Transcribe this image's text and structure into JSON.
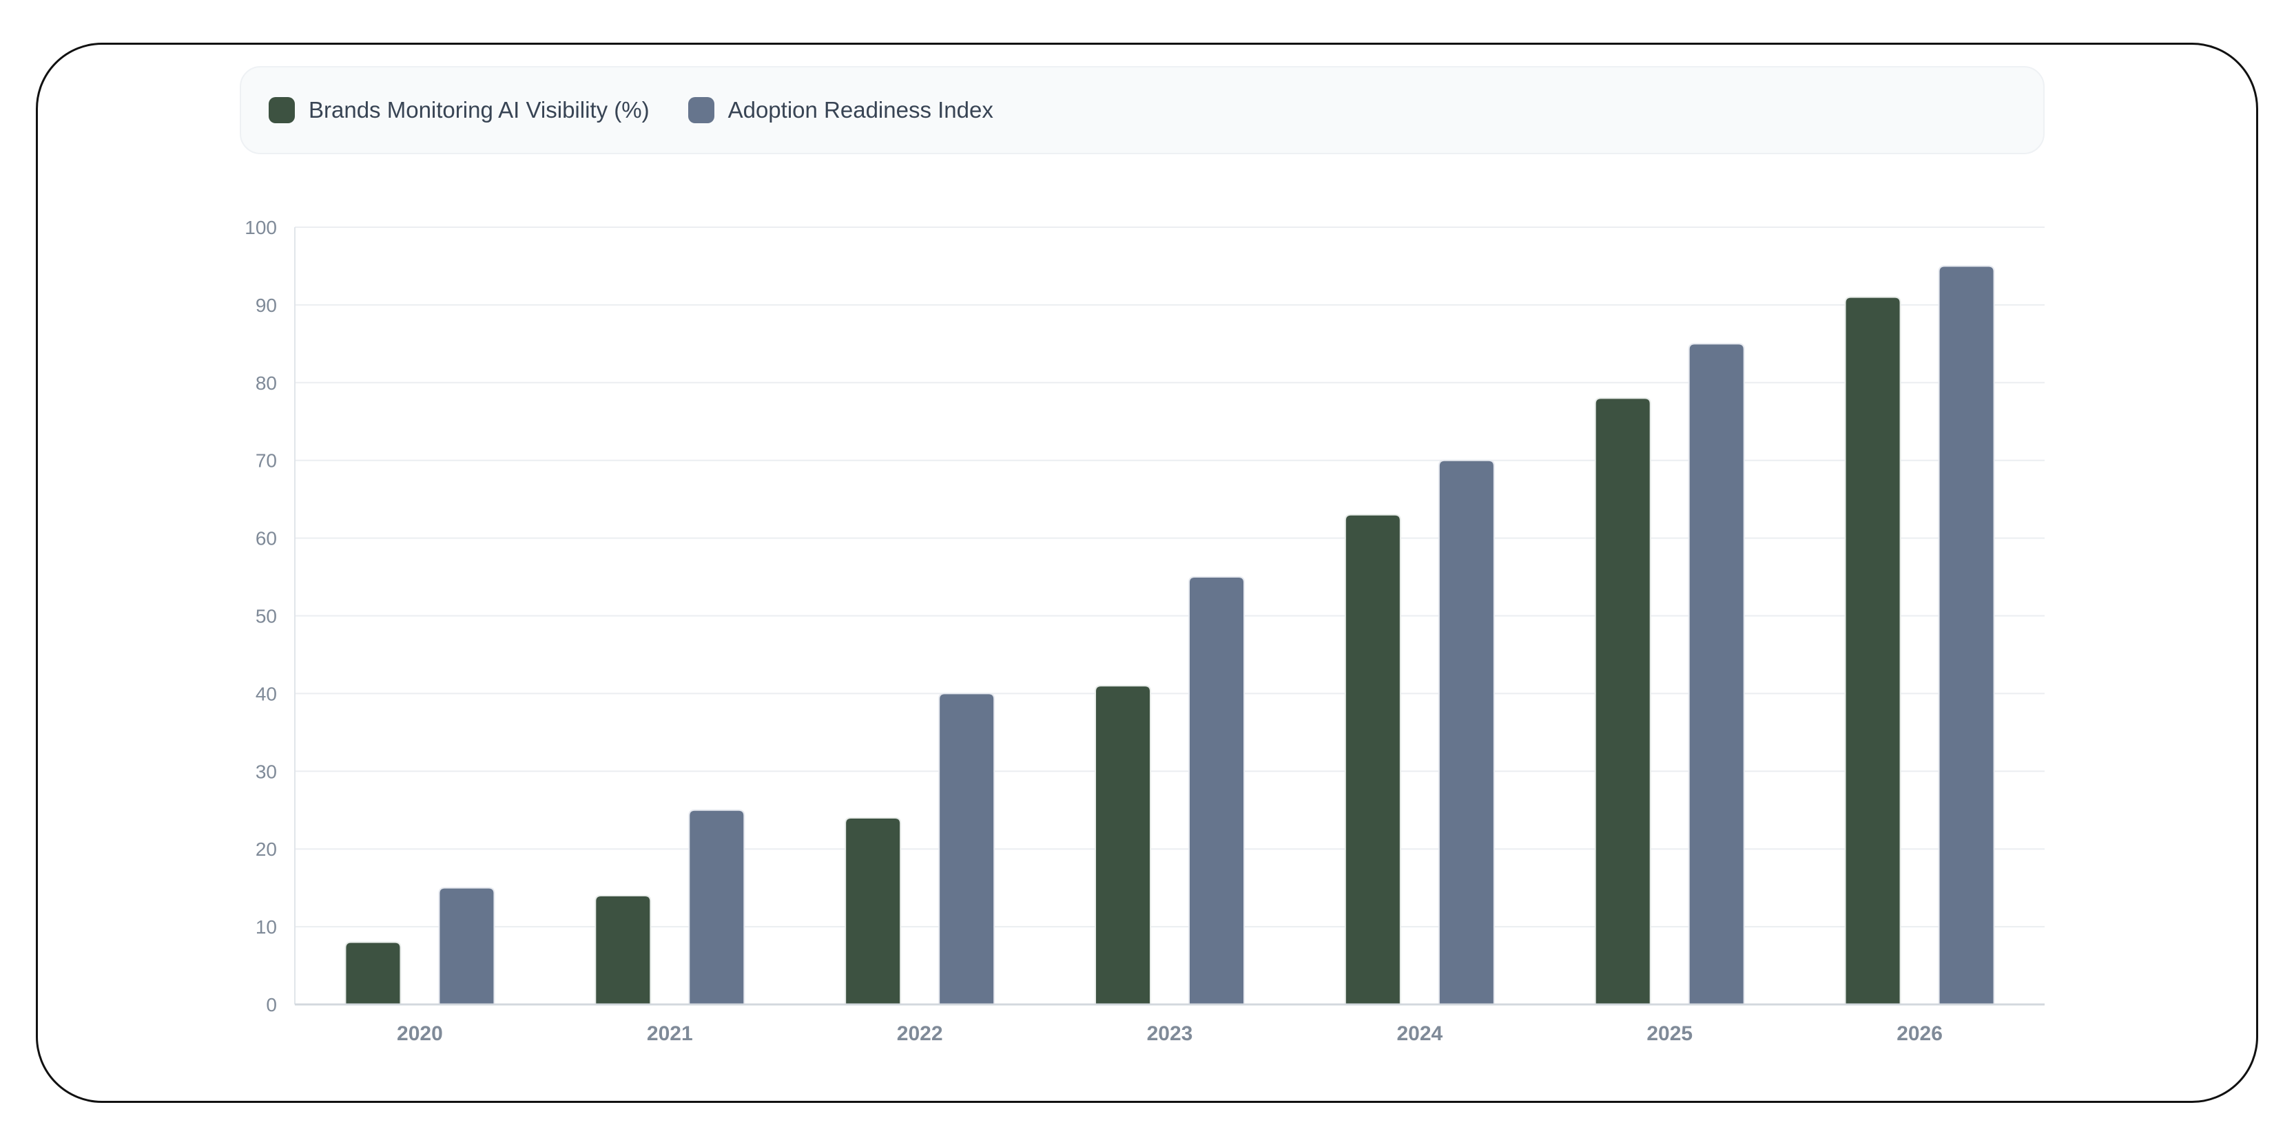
{
  "chart_data": {
    "type": "bar",
    "categories": [
      "2020",
      "2021",
      "2022",
      "2023",
      "2024",
      "2025",
      "2026"
    ],
    "series": [
      {
        "name": "Brands Monitoring AI Visibility (%)",
        "color": "#3d5241",
        "values": [
          8,
          14,
          24,
          41,
          63,
          78,
          91
        ]
      },
      {
        "name": "Adoption Readiness Index",
        "color": "#66758d",
        "values": [
          15,
          25,
          40,
          55,
          70,
          85,
          95
        ]
      }
    ],
    "ylim": [
      0,
      100
    ],
    "yticks": [
      "0",
      "10",
      "20",
      "30",
      "40",
      "50",
      "60",
      "70",
      "80",
      "90",
      "100"
    ],
    "grid": true,
    "legend_position": "top",
    "title": "",
    "xlabel": "",
    "ylabel": ""
  }
}
